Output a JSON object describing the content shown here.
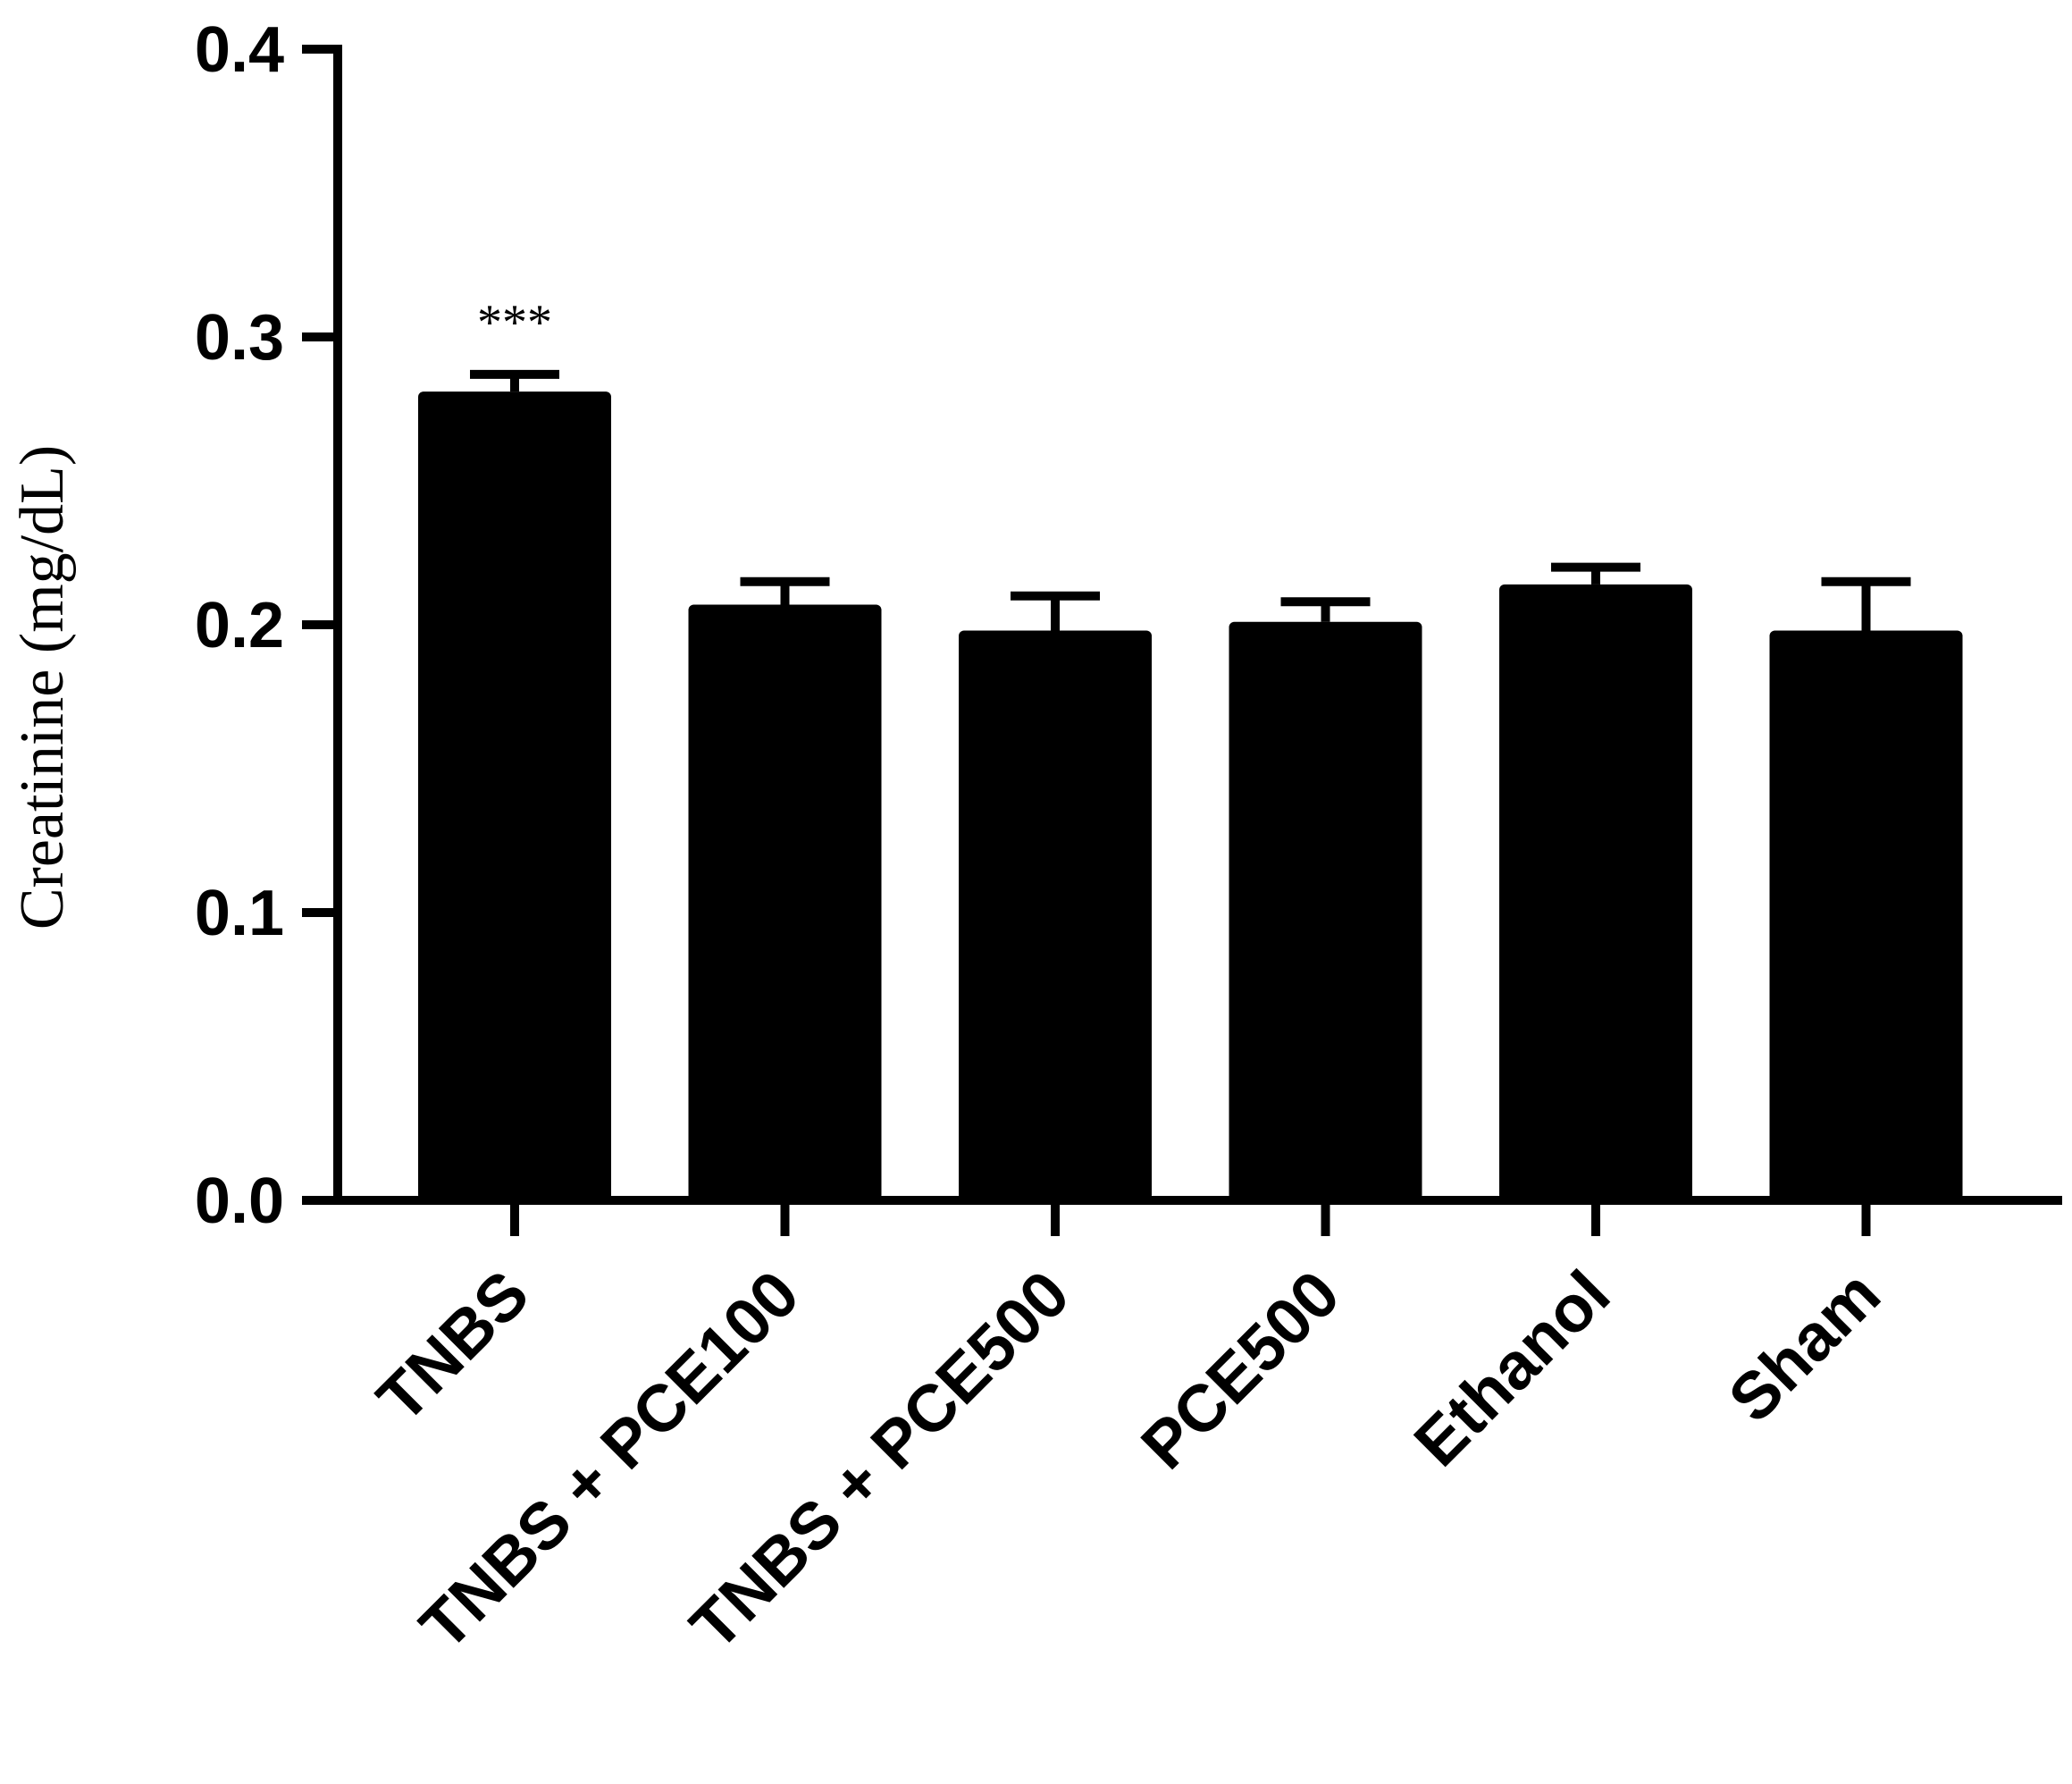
{
  "chart_data": {
    "type": "bar",
    "title": "",
    "xlabel": "",
    "ylabel": "Creatinine (mg/dL)",
    "ylim": [
      0,
      0.4
    ],
    "yticks": [
      "0.0",
      "0.1",
      "0.2",
      "0.3",
      "0.4"
    ],
    "grid": false,
    "legend": "none",
    "bar_color": "#000000",
    "categories": [
      "TNBS",
      "TNBS + PCE100",
      "TNBS + PCE500",
      "PCE500",
      "Ethanol",
      "Sham"
    ],
    "values": [
      0.281,
      0.207,
      0.198,
      0.201,
      0.214,
      0.198
    ],
    "errors": [
      0.006,
      0.008,
      0.012,
      0.007,
      0.006,
      0.017
    ],
    "annotations": [
      {
        "category": "TNBS",
        "text": "***"
      }
    ]
  }
}
